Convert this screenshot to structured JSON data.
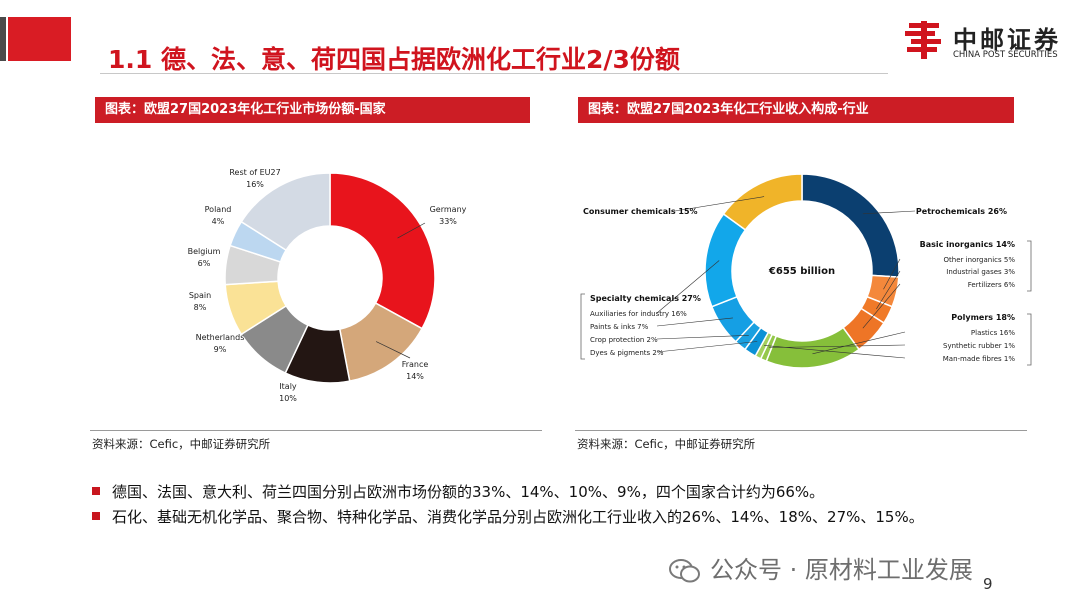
{
  "title": "1.1 德、法、意、荷四国占据欧洲化工行业2/3份额",
  "logo": {
    "cn": "中邮证券",
    "en": "CHINA POST SECURITIES"
  },
  "panels": [
    {
      "heading": "图表：欧盟27国2023年化工行业市场份额-国家",
      "source": "资料来源：Cefic，中邮证券研究所"
    },
    {
      "heading": "图表：欧盟27国2023年化工行业收入构成-行业",
      "source": "资料来源：Cefic，中邮证券研究所"
    }
  ],
  "chart_data": [
    {
      "type": "pie",
      "donut": true,
      "unit": "%",
      "slices": [
        {
          "label": "Germany",
          "value": 33,
          "color": "#e8141c"
        },
        {
          "label": "France",
          "value": 14,
          "color": "#d4a77a"
        },
        {
          "label": "Italy",
          "value": 10,
          "color": "#231613"
        },
        {
          "label": "Netherlands",
          "value": 9,
          "color": "#8a8a8a"
        },
        {
          "label": "Spain",
          "value": 8,
          "color": "#fae296"
        },
        {
          "label": "Belgium",
          "value": 6,
          "color": "#d8d8d8"
        },
        {
          "label": "Poland",
          "value": 4,
          "color": "#bcd7f0"
        },
        {
          "label": "Rest of EU27",
          "value": 16,
          "color": "#d3dae4"
        }
      ]
    },
    {
      "type": "pie",
      "donut": true,
      "unit": "%",
      "center_label": "€655 billion",
      "slices": [
        {
          "label": "Petrochemicals",
          "value": 26,
          "color": "#0b3f70"
        },
        {
          "label": "Other inorganics",
          "value": 5,
          "color": "#f4883b",
          "group": "Basic inorganics"
        },
        {
          "label": "Industrial gases",
          "value": 3,
          "color": "#f07a28",
          "group": "Basic inorganics"
        },
        {
          "label": "Fertilizers",
          "value": 6,
          "color": "#ee7526",
          "group": "Basic inorganics"
        },
        {
          "label": "Plastics",
          "value": 16,
          "color": "#86bf3a",
          "group": "Polymers"
        },
        {
          "label": "Synthetic rubber",
          "value": 1,
          "color": "#94c84a",
          "group": "Polymers"
        },
        {
          "label": "Man-made fibres",
          "value": 1,
          "color": "#a3d05c",
          "group": "Polymers"
        },
        {
          "label": "Dyes & pigments",
          "value": 2,
          "color": "#0b91d6",
          "group": "Specialty chemicals"
        },
        {
          "label": "Crop protection",
          "value": 2,
          "color": "#1aa0e0",
          "group": "Specialty chemicals"
        },
        {
          "label": "Paints & inks",
          "value": 7,
          "color": "#159fe4",
          "group": "Specialty chemicals"
        },
        {
          "label": "Auxiliaries for industry",
          "value": 16,
          "color": "#12a7ea",
          "group": "Specialty chemicals"
        },
        {
          "label": "Consumer chemicals",
          "value": 15,
          "color": "#f0b429"
        }
      ],
      "groups": [
        {
          "label": "Basic inorganics",
          "value": 14
        },
        {
          "label": "Polymers",
          "value": 18
        },
        {
          "label": "Specialty chemicals",
          "value": 27
        }
      ],
      "annotations": {
        "petro": "Petrochemicals 26%",
        "consumer": "Consumer chemicals 15%",
        "basic": "Basic inorganics 14%",
        "other_inorg": "Other inorganics 5%",
        "gases": "Industrial gases 3%",
        "fert": "Fertilizers 6%",
        "poly": "Polymers 18%",
        "plastics": "Plastics 16%",
        "rubber": "Synthetic rubber 1%",
        "fibres": "Man-made fibres 1%",
        "spec": "Specialty chemicals 27%",
        "aux": "Auxiliaries for industry 16%",
        "paints": "Paints & inks 7%",
        "crop": "Crop protection 2%",
        "dyes": "Dyes & pigments 2%"
      }
    }
  ],
  "bullets": [
    "德国、法国、意大利、荷兰四国分别占欧洲市场份额的33%、14%、10%、9%，四个国家合计约为66%。",
    "石化、基础无机化学品、聚合物、特种化学品、消费化学品分别占欧洲化工行业收入的26%、14%、18%、27%、15%。"
  ],
  "watermark": "公众号 · 原材料工业发展",
  "page_number": "9"
}
